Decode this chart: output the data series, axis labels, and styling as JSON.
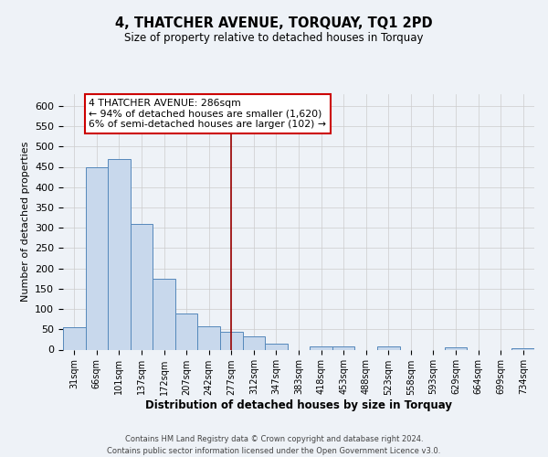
{
  "title": "4, THATCHER AVENUE, TORQUAY, TQ1 2PD",
  "subtitle": "Size of property relative to detached houses in Torquay",
  "xlabel": "Distribution of detached houses by size in Torquay",
  "ylabel": "Number of detached properties",
  "categories": [
    "31sqm",
    "66sqm",
    "101sqm",
    "137sqm",
    "172sqm",
    "207sqm",
    "242sqm",
    "277sqm",
    "312sqm",
    "347sqm",
    "383sqm",
    "418sqm",
    "453sqm",
    "488sqm",
    "523sqm",
    "558sqm",
    "593sqm",
    "629sqm",
    "664sqm",
    "699sqm",
    "734sqm"
  ],
  "values": [
    55,
    450,
    470,
    310,
    175,
    90,
    58,
    43,
    32,
    15,
    0,
    7,
    8,
    0,
    9,
    0,
    0,
    5,
    0,
    0,
    4
  ],
  "bar_color": "#c8d8ec",
  "bar_edge_color": "#5588bb",
  "ylim": [
    0,
    630
  ],
  "yticks": [
    0,
    50,
    100,
    150,
    200,
    250,
    300,
    350,
    400,
    450,
    500,
    550,
    600
  ],
  "property_bin_index": 7,
  "annotation_title": "4 THATCHER AVENUE: 286sqm",
  "annotation_line1": "← 94% of detached houses are smaller (1,620)",
  "annotation_line2": "6% of semi-detached houses are larger (102) →",
  "vline_color": "#990000",
  "annotation_box_edge": "#cc0000",
  "footer1": "Contains HM Land Registry data © Crown copyright and database right 2024.",
  "footer2": "Contains public sector information licensed under the Open Government Licence v3.0.",
  "background_color": "#eef2f7",
  "grid_color": "#cccccc"
}
